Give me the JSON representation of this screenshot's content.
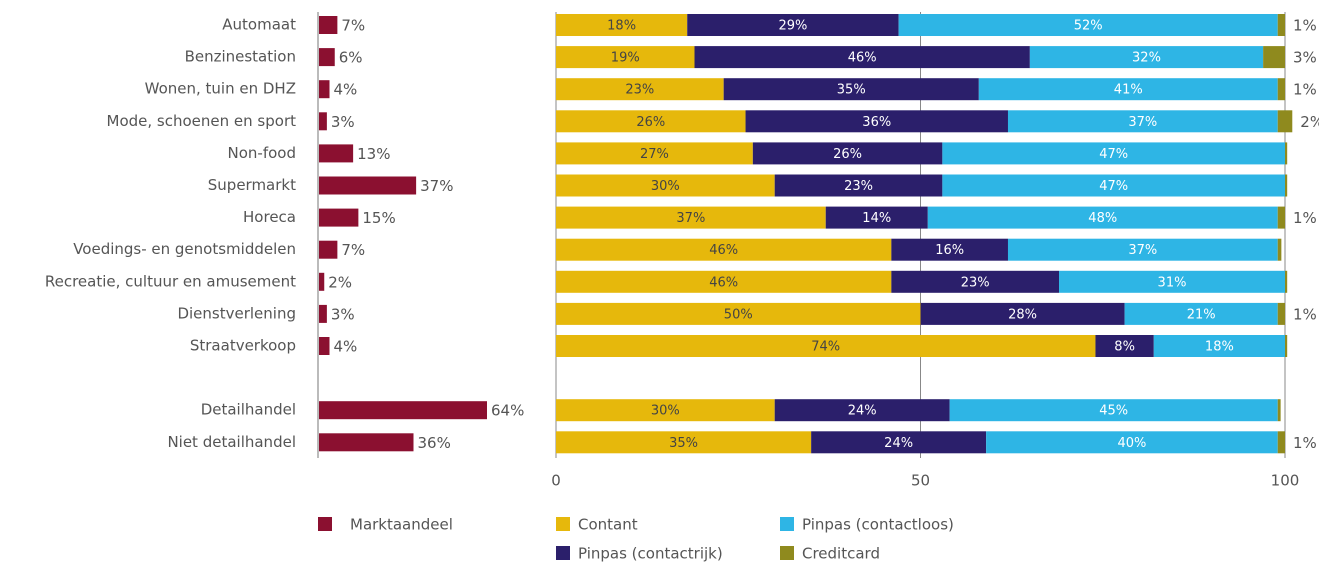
{
  "chart_data": [
    {
      "type": "bar",
      "orientation": "horizontal",
      "categories": [
        "Automaat",
        "Benzinestation",
        "Wonen, tuin en DHZ",
        "Mode, schoenen en sport",
        "Non-food",
        "Supermarkt",
        "Horeca",
        "Voedings- en genotsmiddelen",
        "Recreatie, cultuur en amusement",
        "Dienstverlening",
        "Straatverkoop",
        null,
        "Detailhandel",
        "Niet detailhandel"
      ],
      "series": [
        {
          "name": "Marktaandeel",
          "color": "#8b1030",
          "values": [
            7,
            6,
            4,
            3,
            13,
            37,
            15,
            7,
            2,
            3,
            4,
            null,
            64,
            36
          ],
          "value_labels": [
            "7%",
            "6%",
            "4%",
            "3%",
            "13%",
            "37%",
            "15%",
            "7%",
            "2%",
            "3%",
            "4%",
            null,
            "64%",
            "36%"
          ]
        }
      ]
    },
    {
      "type": "bar",
      "orientation": "horizontal",
      "stacked": true,
      "xlim": [
        0,
        100
      ],
      "xticks": [
        0,
        50,
        100
      ],
      "grid": true,
      "series": [
        {
          "name": "Contant",
          "color": "#e6b80c",
          "values": [
            18,
            19,
            23,
            26,
            27,
            30,
            37,
            46,
            46,
            50,
            74,
            null,
            30,
            35
          ],
          "value_labels": [
            "18%",
            "19%",
            "23%",
            "26%",
            "27%",
            "30%",
            "37%",
            "46%",
            "46%",
            "50%",
            "74%",
            null,
            "30%",
            "35%"
          ]
        },
        {
          "name": "Pinpas (contactrijk)",
          "color": "#2b1f6b",
          "values": [
            29,
            46,
            35,
            36,
            26,
            23,
            14,
            16,
            23,
            28,
            8,
            null,
            24,
            24
          ],
          "value_labels": [
            "29%",
            "46%",
            "35%",
            "36%",
            "26%",
            "23%",
            "14%",
            "16%",
            "23%",
            "28%",
            "8%",
            null,
            "24%",
            "24%"
          ]
        },
        {
          "name": "Pinpas (contactloos)",
          "color": "#2eb5e5",
          "values": [
            52,
            32,
            41,
            37,
            47,
            47,
            48,
            37,
            31,
            21,
            18,
            null,
            45,
            40
          ],
          "value_labels": [
            "52%",
            "32%",
            "41%",
            "37%",
            "47%",
            "47%",
            "48%",
            "37%",
            "31%",
            "21%",
            "18%",
            null,
            "45%",
            "40%"
          ]
        },
        {
          "name": "Creditcard",
          "color": "#8f8a1e",
          "values": [
            1,
            3,
            1,
            2,
            0.3,
            0.3,
            1,
            0.5,
            0.3,
            1,
            0.3,
            null,
            0.4,
            1
          ],
          "value_labels": [
            "1%",
            "3%",
            "1%",
            "2%",
            null,
            null,
            "1%",
            null,
            null,
            "1%",
            null,
            null,
            null,
            "1%"
          ]
        }
      ]
    }
  ]
}
